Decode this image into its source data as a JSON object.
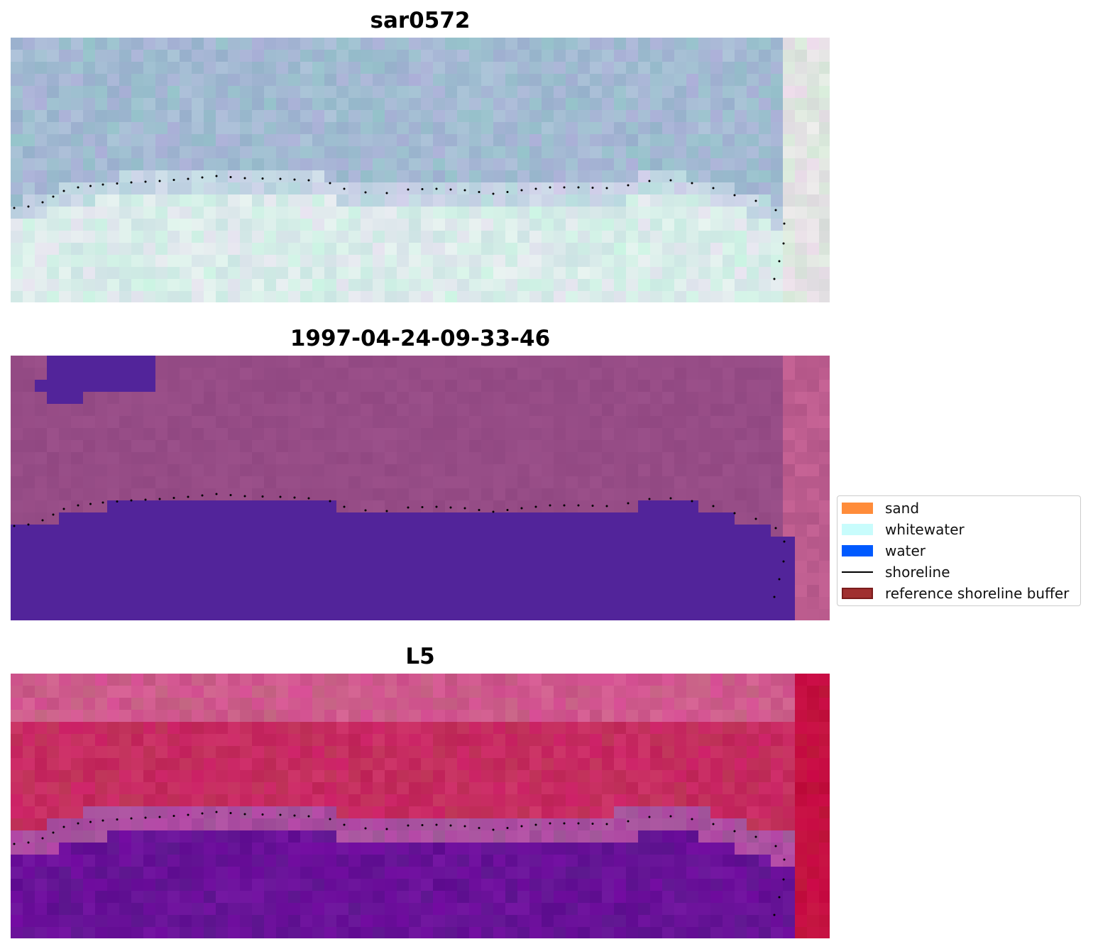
{
  "panels": [
    {
      "title": "sar0572",
      "style": "rgb"
    },
    {
      "title": "1997-04-24-09-33-46",
      "style": "classified"
    },
    {
      "title": "L5",
      "style": "index"
    }
  ],
  "legend": {
    "items": [
      {
        "label": "sand",
        "kind": "patch",
        "color": "#ff8c3a",
        "edge": "none"
      },
      {
        "label": "whitewater",
        "kind": "patch",
        "color": "#c8fcfc",
        "edge": "none"
      },
      {
        "label": "water",
        "kind": "patch",
        "color": "#005aff",
        "edge": "none"
      },
      {
        "label": "shoreline",
        "kind": "line",
        "color": "#000000",
        "edge": "none"
      },
      {
        "label": "reference shoreline buffer",
        "kind": "patch",
        "color": "#a03030",
        "edge": "#7a1c1c"
      }
    ]
  },
  "colors": {
    "shoreline_dots": "#000000",
    "water_mask": "#52249a",
    "land_mask": "#924a86"
  }
}
